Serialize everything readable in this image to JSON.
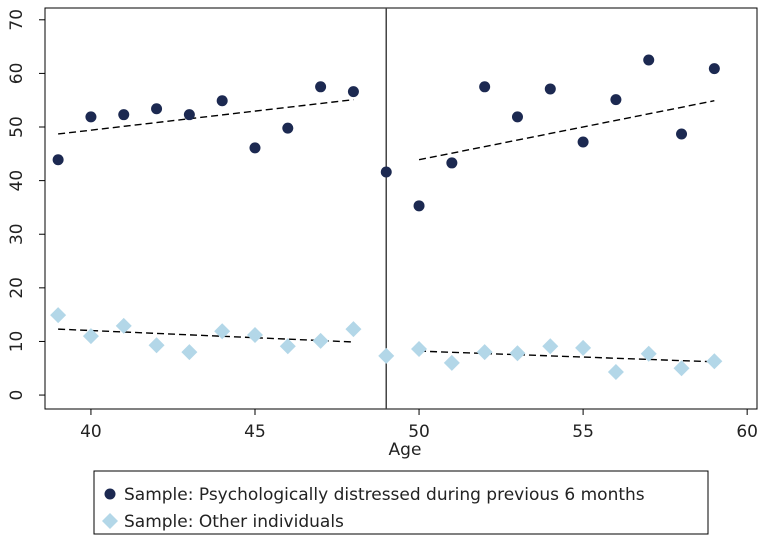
{
  "chart_data": {
    "type": "scatter",
    "x_label": "Age",
    "xlim": [
      38.6,
      60.3
    ],
    "xticks": [
      40,
      45,
      50,
      55,
      60
    ],
    "ylim": [
      -2.6,
      72.2
    ],
    "yticks": [
      0,
      10,
      20,
      30,
      40,
      50,
      60,
      70
    ],
    "cutoff_x": 49,
    "x": [
      39,
      40,
      41,
      42,
      43,
      44,
      45,
      46,
      47,
      48,
      49,
      50,
      51,
      52,
      53,
      54,
      55,
      56,
      57,
      58,
      59
    ],
    "series": [
      {
        "name": "Sample: Psychologically distressed during previous 6 months",
        "color": "#1c2951",
        "marker": "circle",
        "values": [
          43.9,
          51.9,
          52.3,
          53.4,
          52.3,
          54.9,
          46.1,
          49.8,
          57.5,
          56.6,
          41.6,
          35.3,
          43.3,
          57.5,
          51.9,
          57.1,
          47.2,
          55.1,
          62.5,
          48.7,
          60.9
        ]
      },
      {
        "name": "Sample: Other individuals",
        "color": "#b3d7e8",
        "marker": "diamond",
        "values": [
          14.9,
          11.0,
          12.9,
          9.3,
          8.0,
          11.9,
          11.2,
          9.1,
          10.1,
          12.3,
          7.3,
          8.6,
          6.0,
          8.0,
          7.8,
          9.1,
          8.8,
          4.3,
          7.7,
          5.0,
          6.3
        ]
      }
    ],
    "fit_lines": [
      {
        "x": [
          39,
          48
        ],
        "values": [
          48.7,
          55.1
        ]
      },
      {
        "x": [
          50,
          59
        ],
        "values": [
          43.9,
          54.9
        ]
      },
      {
        "x": [
          39,
          48
        ],
        "values": [
          12.3,
          9.9
        ]
      },
      {
        "x": [
          50,
          59
        ],
        "values": [
          8.2,
          6.2
        ]
      }
    ]
  }
}
